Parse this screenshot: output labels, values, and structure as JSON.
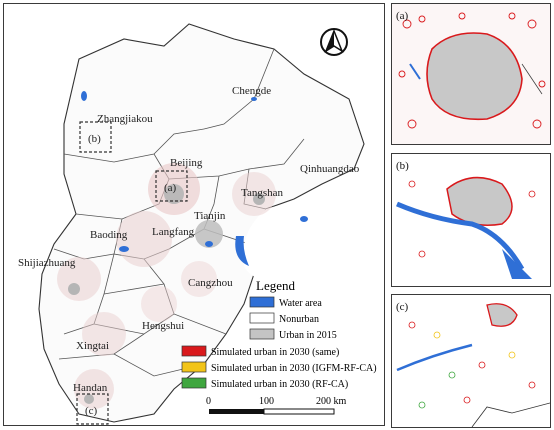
{
  "main_map": {
    "city_labels": {
      "zhangjiakou": "Zhangjiakou",
      "chengde": "Chengde",
      "beijing": "Beijing",
      "qinhuangdao": "Qinhuangdao",
      "tangshan": "Tangshan",
      "tianjin": "Tianjin",
      "baoding": "Baoding",
      "langfang": "Langfang",
      "shijiazhuang": "Shijiazhuang",
      "cangzhou": "Cangzhou",
      "hengshui": "Hengshui",
      "xingtai": "Xingtai",
      "handan": "Handan"
    },
    "box_labels": {
      "a": "(a)",
      "b": "(b)",
      "c": "(c)"
    }
  },
  "legend": {
    "title": "Legend",
    "items": [
      {
        "label": "Water area",
        "color": "#2f6fd6"
      },
      {
        "label": "Nonurban",
        "color": "#ffffff"
      },
      {
        "label": "Urban in 2015",
        "color": "#c4c4c4"
      },
      {
        "label": "Simulated urban in 2030 (same)",
        "color": "#d9191c"
      },
      {
        "label": "Simulated urban in 2030 (IGFM-RF-CA)",
        "color": "#f2c418"
      },
      {
        "label": "Simulated urban in 2030 (RF-CA)",
        "color": "#3fa63f"
      }
    ]
  },
  "scale_bar": {
    "ticks": [
      "0",
      "100",
      "200 km"
    ]
  },
  "insets": {
    "a": "(a)",
    "b": "(b)",
    "c": "(c)"
  }
}
